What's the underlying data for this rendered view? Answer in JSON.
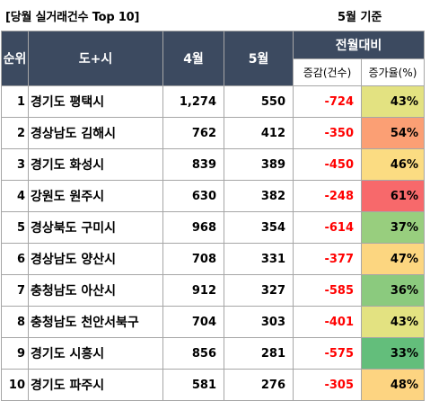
{
  "title": "[당월 실거래건수 Top 10]",
  "subtitle": "5월 기준",
  "headers": {
    "rank": "순위",
    "region": "도+시",
    "april": "4월",
    "may": "5월",
    "mom": "전월대비",
    "change_count": "증감(건수)",
    "change_rate": "증가율(%)"
  },
  "rows": [
    {
      "rank": "1",
      "region": "경기도 평택시",
      "april": "1,274",
      "may": "550",
      "change": "-724",
      "rate": "43%",
      "rate_color": "#e3e281"
    },
    {
      "rank": "2",
      "region": "경상남도 김해시",
      "april": "762",
      "may": "412",
      "change": "-350",
      "rate": "54%",
      "rate_color": "#fb9f74"
    },
    {
      "rank": "3",
      "region": "경기도 화성시",
      "april": "839",
      "may": "389",
      "change": "-450",
      "rate": "46%",
      "rate_color": "#fbdc82"
    },
    {
      "rank": "4",
      "region": "강원도 원주시",
      "april": "630",
      "may": "382",
      "change": "-248",
      "rate": "61%",
      "rate_color": "#f7696b"
    },
    {
      "rank": "5",
      "region": "경상북도 구미시",
      "april": "968",
      "may": "354",
      "change": "-614",
      "rate": "37%",
      "rate_color": "#98ce7e"
    },
    {
      "rank": "6",
      "region": "경상남도 양산시",
      "april": "708",
      "may": "331",
      "change": "-377",
      "rate": "47%",
      "rate_color": "#fcd680"
    },
    {
      "rank": "7",
      "region": "충청남도 아산시",
      "april": "912",
      "may": "327",
      "change": "-585",
      "rate": "36%",
      "rate_color": "#8bca7e"
    },
    {
      "rank": "8",
      "region": "충청남도 천안서북구",
      "april": "704",
      "may": "303",
      "change": "-401",
      "rate": "43%",
      "rate_color": "#e3e281"
    },
    {
      "rank": "9",
      "region": "경기도 시흥시",
      "april": "856",
      "may": "281",
      "change": "-575",
      "rate": "33%",
      "rate_color": "#63be7b"
    },
    {
      "rank": "10",
      "region": "경기도 파주시",
      "april": "581",
      "may": "276",
      "change": "-305",
      "rate": "48%",
      "rate_color": "#fdd481"
    }
  ]
}
